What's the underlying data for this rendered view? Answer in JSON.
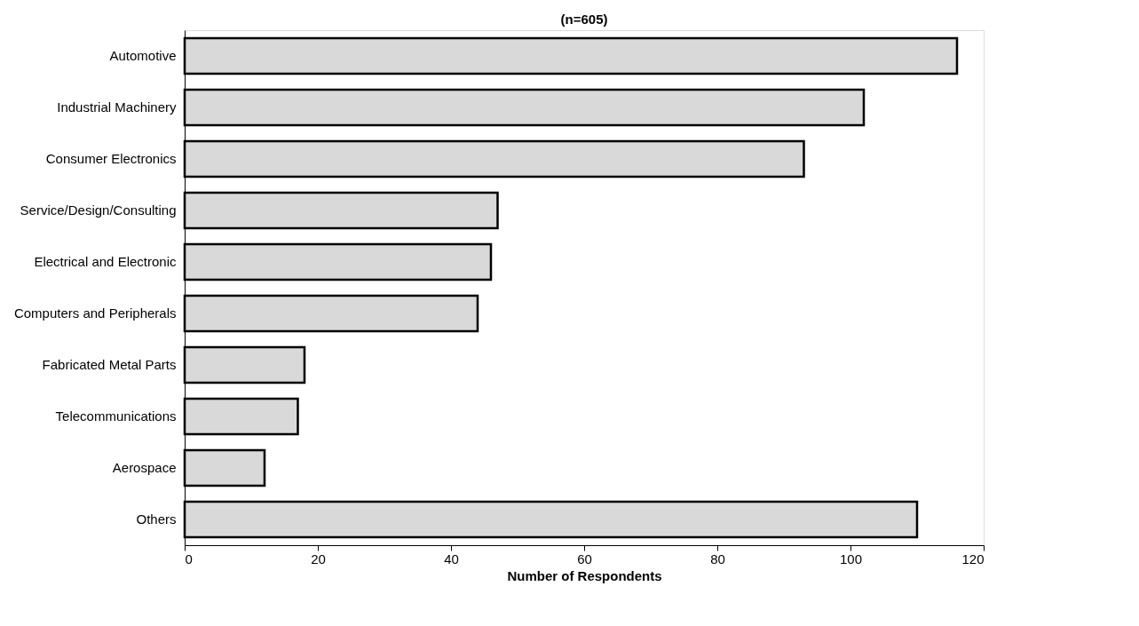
{
  "chart_data": {
    "type": "bar",
    "orientation": "horizontal",
    "title": "(n=605)",
    "xlabel": "Number of Respondents",
    "categories": [
      "Automotive",
      "Industrial Machinery",
      "Consumer Electronics",
      "Service/Design/Consulting",
      "Electrical and Electronic",
      "Computers and Peripherals",
      "Fabricated Metal Parts",
      "Telecommunications",
      "Aerospace",
      "Others"
    ],
    "values": [
      116,
      102,
      93,
      47,
      46,
      44,
      18,
      17,
      12,
      110
    ],
    "color": "#d9d9d9",
    "xlim": [
      0,
      120
    ],
    "xticks": [
      0,
      20,
      40,
      60,
      80,
      100,
      120
    ],
    "grid": false
  }
}
